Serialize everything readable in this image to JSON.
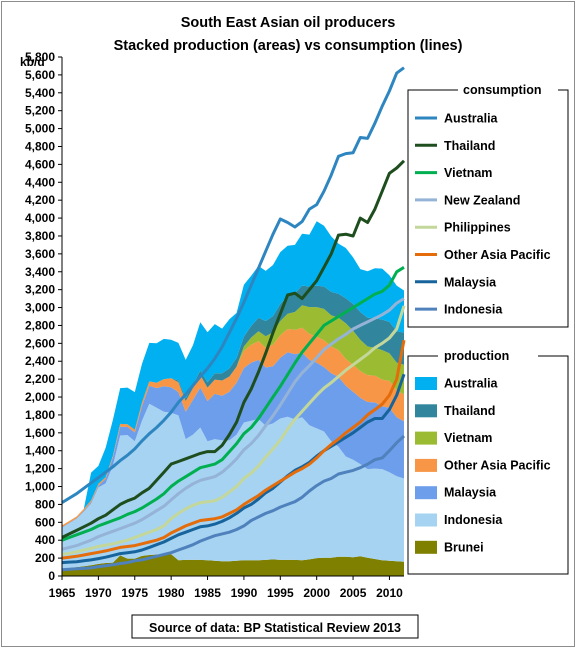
{
  "chart_data": {
    "type": "area",
    "title": "South East Asian oil producers",
    "subtitle": "Stacked production (areas) vs consumption (lines)",
    "ylabel": "kb/d",
    "xlabel": "",
    "ylim": [
      0,
      5800
    ],
    "xlim": [
      1965,
      2012
    ],
    "y_ticks": [
      "0",
      "200",
      "400",
      "600",
      "800",
      "1,000",
      "1,200",
      "1,400",
      "1,600",
      "1,800",
      "2,000",
      "2,200",
      "2,400",
      "2,600",
      "2,800",
      "3,000",
      "3,200",
      "3,400",
      "3,600",
      "3,800",
      "4,000",
      "4,200",
      "4,400",
      "4,600",
      "4,800",
      "5,000",
      "5,200",
      "5,400",
      "5,600",
      "5,800"
    ],
    "x_ticks": [
      "1965",
      "1970",
      "1975",
      "1980",
      "1985",
      "1990",
      "1995",
      "2000",
      "2005",
      "2010"
    ],
    "grid": false,
    "source": "Source of data: BP Statistical Review 2013",
    "x": [
      1965,
      1966,
      1967,
      1968,
      1969,
      1970,
      1971,
      1972,
      1973,
      1974,
      1975,
      1976,
      1977,
      1978,
      1979,
      1980,
      1981,
      1982,
      1983,
      1984,
      1985,
      1986,
      1987,
      1988,
      1989,
      1990,
      1991,
      1992,
      1993,
      1994,
      1995,
      1996,
      1997,
      1998,
      1999,
      2000,
      2001,
      2002,
      2003,
      2004,
      2005,
      2006,
      2007,
      2008,
      2009,
      2010,
      2011,
      2012
    ],
    "production_legend_title": "production",
    "production": [
      {
        "name": "Brunei",
        "color": "#7f7f00",
        "values": [
          80,
          90,
          100,
          110,
          120,
          135,
          145,
          150,
          230,
          195,
          195,
          225,
          235,
          240,
          245,
          245,
          175,
          180,
          180,
          180,
          175,
          170,
          165,
          165,
          170,
          175,
          175,
          175,
          180,
          185,
          180,
          180,
          180,
          175,
          185,
          200,
          205,
          205,
          215,
          215,
          210,
          220,
          205,
          190,
          175,
          170,
          165,
          160
        ]
      },
      {
        "name": "Indonesia",
        "color": "#a6d3f2",
        "values": [
          460,
          500,
          540,
          610,
          690,
          855,
          890,
          1085,
          1340,
          1380,
          1310,
          1510,
          1690,
          1640,
          1590,
          1580,
          1620,
          1350,
          1400,
          1480,
          1330,
          1360,
          1350,
          1350,
          1410,
          1540,
          1560,
          1580,
          1500,
          1520,
          1580,
          1600,
          1570,
          1600,
          1500,
          1450,
          1410,
          1300,
          1230,
          1120,
          1090,
          1030,
          990,
          1010,
          1020,
          990,
          950,
          930
        ]
      },
      {
        "name": "Malaysia",
        "color": "#6d9eeb",
        "values": [
          5,
          5,
          5,
          10,
          15,
          20,
          50,
          90,
          100,
          90,
          100,
          165,
          200,
          220,
          285,
          285,
          260,
          305,
          390,
          445,
          450,
          505,
          500,
          545,
          580,
          610,
          650,
          660,
          650,
          640,
          680,
          720,
          730,
          720,
          730,
          735,
          720,
          760,
          780,
          790,
          760,
          740,
          750,
          740,
          700,
          720,
          660,
          640
        ]
      },
      {
        "name": "Other Asia Pacific",
        "color": "#f79646",
        "values": [
          20,
          20,
          20,
          20,
          20,
          20,
          20,
          20,
          30,
          30,
          30,
          40,
          50,
          60,
          80,
          100,
          110,
          120,
          130,
          140,
          150,
          160,
          170,
          170,
          180,
          190,
          200,
          210,
          220,
          240,
          250,
          260,
          270,
          280,
          290,
          290,
          300,
          300,
          300,
          300,
          300,
          300,
          300,
          300,
          300,
          300,
          300,
          300
        ]
      },
      {
        "name": "Vietnam",
        "color": "#9bbb33",
        "values": [
          0,
          0,
          0,
          0,
          0,
          0,
          0,
          0,
          0,
          0,
          0,
          0,
          0,
          0,
          0,
          0,
          0,
          0,
          0,
          0,
          0,
          0,
          0,
          0,
          0,
          50,
          80,
          110,
          130,
          140,
          160,
          170,
          200,
          250,
          300,
          330,
          350,
          350,
          360,
          400,
          380,
          350,
          320,
          310,
          330,
          310,
          310,
          330
        ]
      },
      {
        "name": "Thailand",
        "color": "#31859c",
        "values": [
          0,
          0,
          0,
          0,
          0,
          0,
          0,
          0,
          0,
          0,
          0,
          0,
          0,
          0,
          0,
          0,
          20,
          30,
          40,
          50,
          60,
          70,
          80,
          90,
          100,
          110,
          130,
          150,
          170,
          180,
          190,
          200,
          210,
          220,
          230,
          240,
          250,
          260,
          270,
          280,
          300,
          310,
          320,
          330,
          340,
          350,
          350,
          360
        ]
      },
      {
        "name": "Australia",
        "color": "#00b0f0",
        "values": [
          0,
          0,
          0,
          0,
          310,
          200,
          330,
          400,
          400,
          410,
          420,
          430,
          430,
          440,
          450,
          430,
          420,
          430,
          440,
          540,
          560,
          550,
          500,
          550,
          500,
          580,
          560,
          580,
          560,
          570,
          580,
          560,
          540,
          580,
          580,
          720,
          680,
          620,
          560,
          560,
          520,
          480,
          520,
          560,
          570,
          520,
          510,
          470
        ]
      }
    ],
    "consumption_legend_title": "consumption",
    "consumption": [
      {
        "name": "Indonesia",
        "color": "#4f81bd",
        "values": [
          70,
          75,
          80,
          85,
          90,
          105,
          115,
          125,
          140,
          150,
          170,
          180,
          200,
          220,
          240,
          260,
          290,
          320,
          350,
          390,
          420,
          450,
          470,
          490,
          520,
          560,
          620,
          660,
          700,
          730,
          770,
          800,
          830,
          880,
          950,
          1010,
          1060,
          1090,
          1140,
          1160,
          1180,
          1210,
          1250,
          1300,
          1320,
          1400,
          1490,
          1565
        ]
      },
      {
        "name": "Malaysia",
        "color": "#17649d",
        "values": [
          150,
          155,
          160,
          170,
          180,
          195,
          210,
          230,
          250,
          260,
          270,
          290,
          320,
          350,
          380,
          420,
          460,
          490,
          520,
          550,
          560,
          580,
          610,
          650,
          700,
          760,
          800,
          860,
          930,
          980,
          1050,
          1120,
          1180,
          1220,
          1270,
          1340,
          1400,
          1450,
          1500,
          1550,
          1600,
          1660,
          1720,
          1760,
          1760,
          1860,
          2020,
          2255
        ]
      },
      {
        "name": "Other Asia Pacific",
        "color": "#e46c0a",
        "values": [
          200,
          210,
          220,
          235,
          250,
          265,
          280,
          300,
          320,
          330,
          340,
          360,
          380,
          400,
          430,
          480,
          520,
          560,
          590,
          620,
          630,
          640,
          660,
          700,
          740,
          800,
          850,
          900,
          960,
          1010,
          1060,
          1110,
          1160,
          1200,
          1250,
          1320,
          1400,
          1470,
          1530,
          1600,
          1660,
          1720,
          1800,
          1860,
          1920,
          2020,
          2200,
          2635
        ]
      },
      {
        "name": "Philippines",
        "color": "#c4d79b",
        "values": [
          240,
          255,
          270,
          290,
          310,
          330,
          345,
          360,
          380,
          400,
          430,
          460,
          490,
          520,
          560,
          640,
          700,
          750,
          790,
          820,
          830,
          840,
          880,
          940,
          1000,
          1090,
          1150,
          1230,
          1330,
          1420,
          1520,
          1640,
          1750,
          1840,
          1930,
          2020,
          2100,
          2160,
          2230,
          2300,
          2360,
          2420,
          2480,
          2550,
          2600,
          2660,
          2760,
          3020
        ]
      },
      {
        "name": "New Zealand",
        "color": "#95b3d7",
        "values": [
          300,
          320,
          340,
          370,
          400,
          440,
          470,
          500,
          530,
          560,
          590,
          630,
          680,
          730,
          780,
          850,
          920,
          980,
          1030,
          1070,
          1090,
          1110,
          1160,
          1230,
          1310,
          1410,
          1480,
          1570,
          1680,
          1790,
          1910,
          2040,
          2170,
          2270,
          2350,
          2440,
          2530,
          2590,
          2650,
          2700,
          2760,
          2800,
          2840,
          2880,
          2920,
          2970,
          3050,
          3100
        ]
      },
      {
        "name": "Vietnam",
        "color": "#00b050",
        "values": [
          400,
          430,
          460,
          490,
          520,
          560,
          590,
          620,
          650,
          690,
          720,
          760,
          810,
          860,
          920,
          1000,
          1060,
          1110,
          1160,
          1210,
          1230,
          1250,
          1300,
          1390,
          1480,
          1590,
          1660,
          1760,
          1880,
          2000,
          2120,
          2250,
          2380,
          2500,
          2600,
          2700,
          2800,
          2850,
          2900,
          2950,
          3000,
          3050,
          3100,
          3150,
          3180,
          3250,
          3400,
          3450
        ]
      },
      {
        "name": "Thailand",
        "color": "#1e4d1e",
        "values": [
          430,
          470,
          510,
          550,
          590,
          640,
          680,
          740,
          800,
          840,
          870,
          930,
          980,
          1070,
          1160,
          1250,
          1280,
          1310,
          1340,
          1370,
          1390,
          1390,
          1460,
          1580,
          1720,
          1940,
          2090,
          2280,
          2490,
          2720,
          2930,
          3140,
          3160,
          3100,
          3200,
          3300,
          3450,
          3600,
          3810,
          3820,
          3800,
          4000,
          3950,
          4100,
          4300,
          4500,
          4560,
          4640
        ]
      },
      {
        "name": "Australia",
        "color": "#2e86c1",
        "values": [
          820,
          870,
          920,
          980,
          1040,
          1100,
          1160,
          1220,
          1290,
          1350,
          1420,
          1510,
          1590,
          1660,
          1740,
          1830,
          1940,
          2030,
          2130,
          2230,
          2320,
          2430,
          2560,
          2720,
          2880,
          3060,
          3250,
          3440,
          3630,
          3820,
          3990,
          3950,
          3900,
          3960,
          4100,
          4150,
          4300,
          4480,
          4690,
          4720,
          4730,
          4900,
          4890,
          5060,
          5250,
          5420,
          5620,
          5680
        ]
      }
    ]
  }
}
